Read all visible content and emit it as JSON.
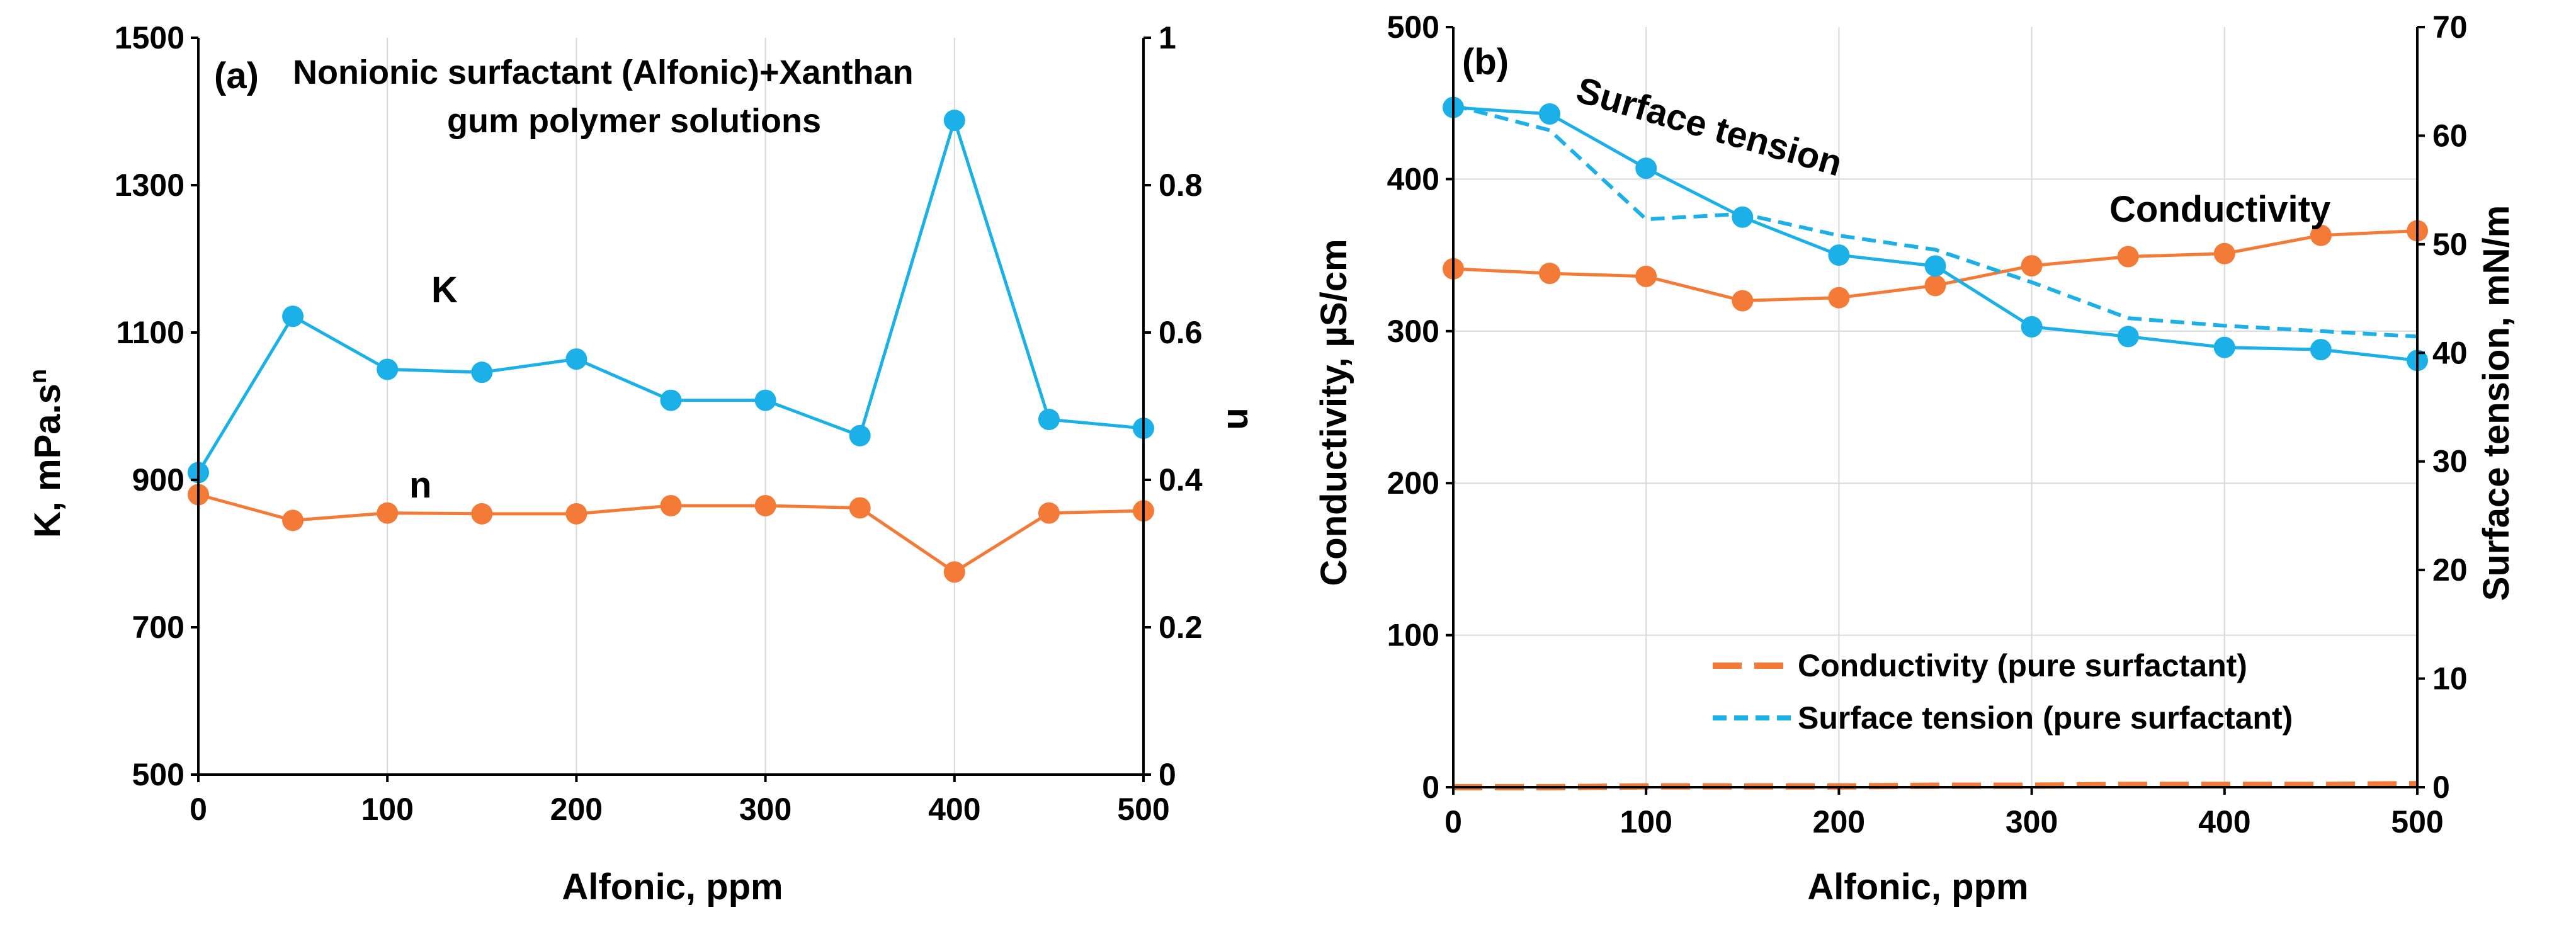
{
  "colors": {
    "blue": "#1BB0E8",
    "orange": "#F47A37",
    "grid": "#d9d9d9",
    "axis": "#000000"
  },
  "chart_data": [
    {
      "panel": "(a)",
      "type": "line",
      "title_lines": [
        "Nonionic surfactant (Alfonic)+Xanthan",
        "gum polymer solutions"
      ],
      "xlabel": "Alfonic, ppm",
      "ylabel_left": "K, mPa.s",
      "ylabel_left_sup": "n",
      "ylabel_right": "n",
      "xlim": [
        0,
        500
      ],
      "ylim_left": [
        500,
        1500
      ],
      "ylim_right": [
        0,
        1
      ],
      "xticks": [
        "0",
        "100",
        "200",
        "300",
        "400",
        "500"
      ],
      "yticks_left": [
        "500",
        "700",
        "900",
        "1100",
        "1300",
        "1500"
      ],
      "yticks_right": [
        "0",
        "0.2",
        "0.4",
        "0.6",
        "0.8",
        "1"
      ],
      "x": [
        0,
        50,
        100,
        150,
        200,
        250,
        300,
        350,
        400,
        450,
        500
      ],
      "series": [
        {
          "name": "K",
          "axis": "left",
          "color": "#1BB0E8",
          "values": [
            910,
            1122,
            1050,
            1046,
            1064,
            1008,
            1008,
            960,
            1388,
            982,
            970
          ]
        },
        {
          "name": "n",
          "axis": "right",
          "color": "#F47A37",
          "values": [
            0.38,
            0.345,
            0.355,
            0.354,
            0.354,
            0.365,
            0.365,
            0.362,
            0.275,
            0.355,
            0.358
          ]
        }
      ],
      "annotations": [
        {
          "text": "K",
          "color": "#1BB0E8"
        },
        {
          "text": "n",
          "color": "#F47A37"
        }
      ]
    },
    {
      "panel": "(b)",
      "type": "line",
      "xlabel": "Alfonic, ppm",
      "ylabel_left": "Conductivity, µS/cm",
      "ylabel_right": "Surface tension, mN/m",
      "xlim": [
        0,
        500
      ],
      "ylim_left": [
        0,
        500
      ],
      "ylim_right": [
        0,
        70
      ],
      "xticks": [
        "0",
        "100",
        "200",
        "300",
        "400",
        "500"
      ],
      "yticks_left": [
        "0",
        "100",
        "200",
        "300",
        "400",
        "500"
      ],
      "yticks_right": [
        "0",
        "10",
        "20",
        "30",
        "40",
        "50",
        "60",
        "70"
      ],
      "x": [
        0,
        50,
        100,
        150,
        200,
        250,
        300,
        350,
        400,
        450,
        500
      ],
      "series": [
        {
          "name": "Conductivity",
          "axis": "left",
          "color": "#F47A37",
          "style": "solid-marker",
          "values": [
            341,
            338,
            336,
            320,
            322,
            330,
            343,
            349,
            351,
            363,
            366
          ]
        },
        {
          "name": "Surface tension",
          "axis": "right",
          "color": "#1BB0E8",
          "style": "solid-marker",
          "values": [
            62.6,
            62.0,
            57.0,
            52.5,
            49.0,
            48.0,
            42.4,
            41.5,
            40.5,
            40.3,
            39.3
          ]
        },
        {
          "name": "Conductivity (pure surfactant)",
          "axis": "left",
          "color": "#F47A37",
          "style": "dashed",
          "values": [
            0,
            0,
            0.5,
            0.5,
            0.5,
            1,
            1,
            1.5,
            1.5,
            1.5,
            2
          ]
        },
        {
          "name": "Surface tension (pure surfactant)",
          "axis": "right",
          "color": "#1BB0E8",
          "style": "dashed",
          "values": [
            62.8,
            60.5,
            52.3,
            52.8,
            50.8,
            49.5,
            46.5,
            43.2,
            42.5,
            42.0,
            41.5
          ]
        }
      ],
      "annotations": [
        {
          "text": "Surface tension",
          "color": "#1BB0E8"
        },
        {
          "text": "Conductivity",
          "color": "#F47A37"
        }
      ],
      "legend": [
        {
          "label": "Conductivity (pure surfactant)",
          "color": "#F47A37",
          "style": "long-dash"
        },
        {
          "label": "Surface tension (pure surfactant)",
          "color": "#1BB0E8",
          "style": "short-dash"
        }
      ]
    }
  ]
}
